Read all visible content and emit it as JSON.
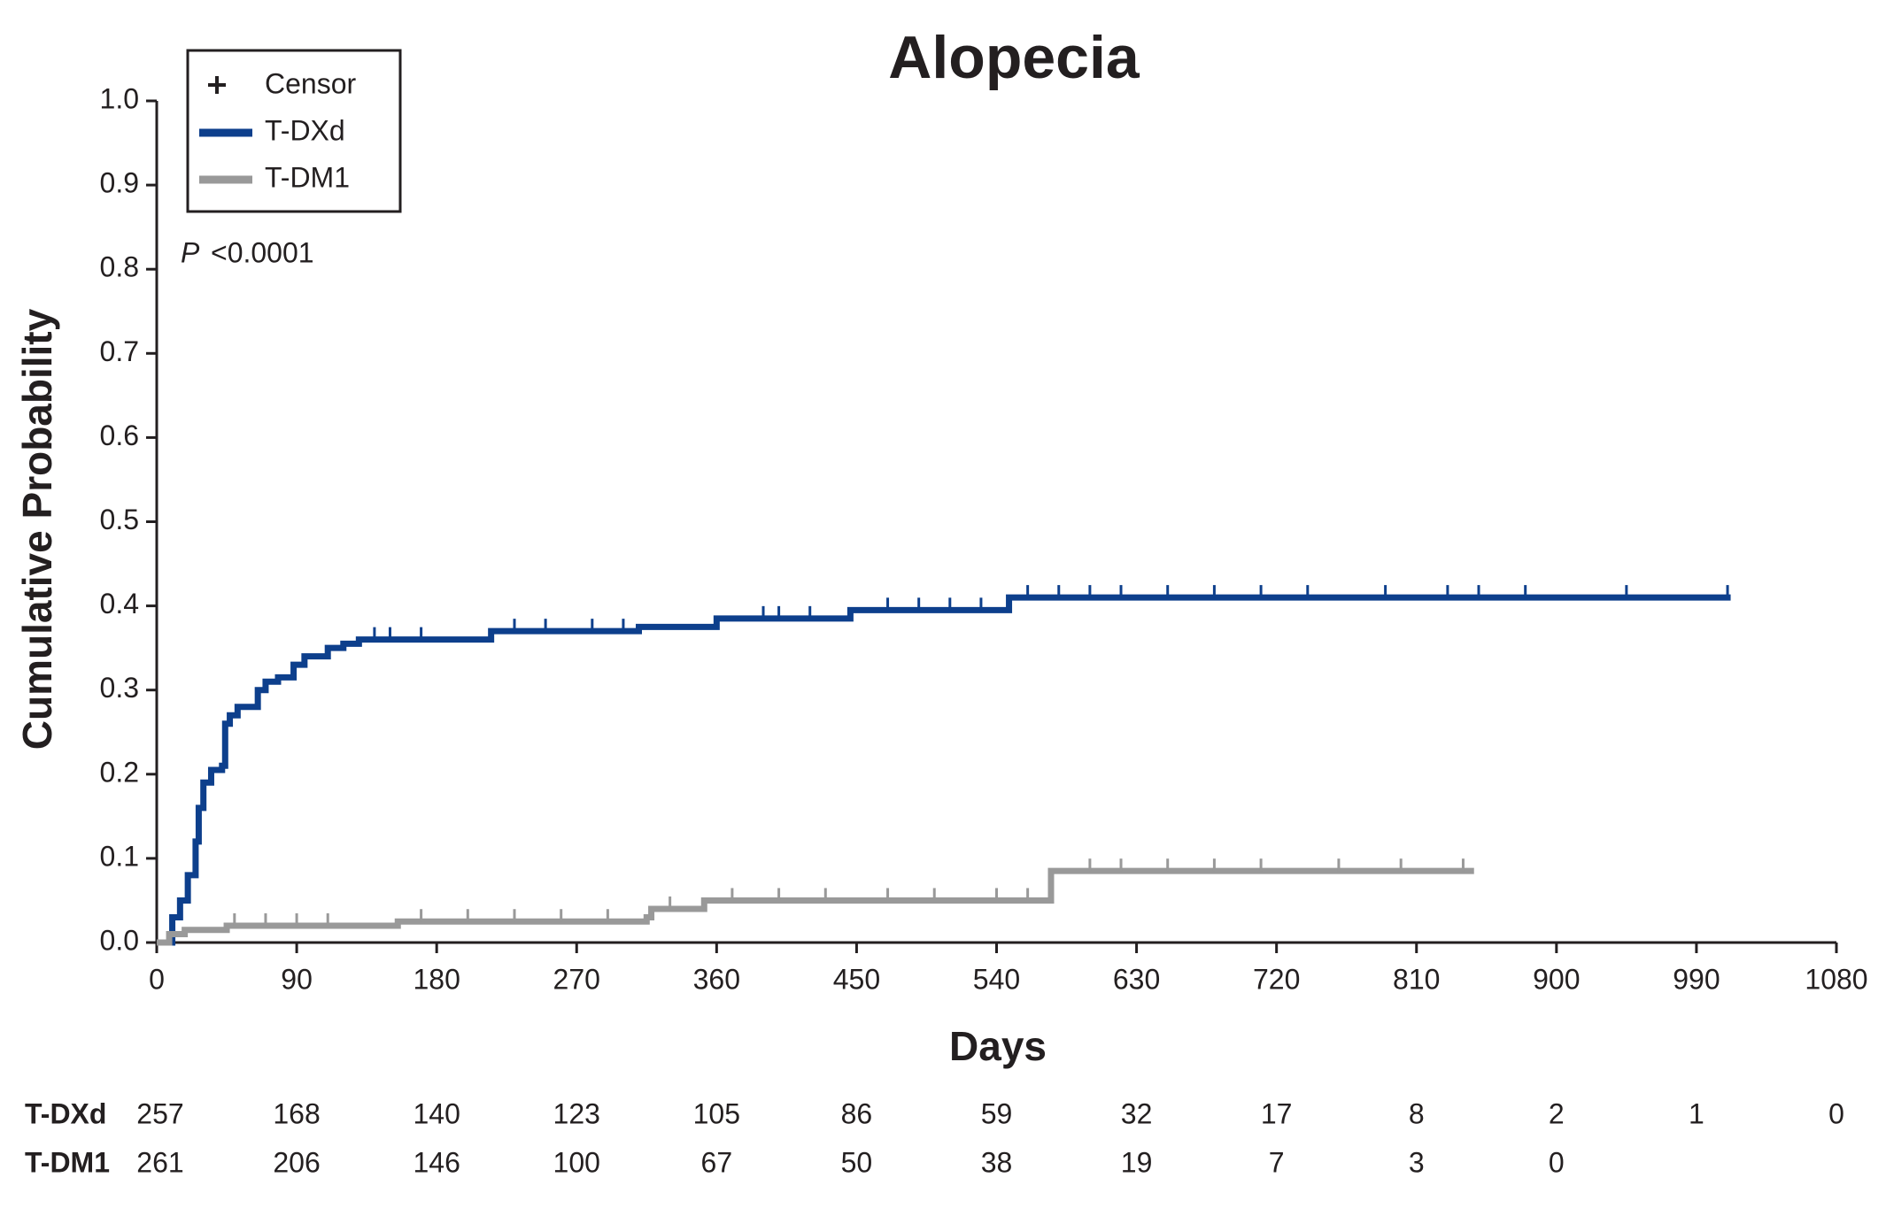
{
  "chart_data": {
    "type": "step",
    "title": "Alopecia",
    "xlabel": "Days",
    "ylabel": "Cumulative Probability",
    "annotation_italic": "P",
    "annotation": "<0.0001",
    "censor_label": "Censor",
    "xlim": [
      0,
      1080
    ],
    "xticks": [
      0,
      90,
      180,
      270,
      360,
      450,
      540,
      630,
      720,
      810,
      900,
      990,
      1080
    ],
    "ylim": [
      0,
      1
    ],
    "yticks": [
      {
        "value": 0,
        "label": "0.0"
      },
      0.1,
      0.2,
      0.3,
      0.4,
      0.5,
      0.6,
      0.7,
      0.8,
      0.9,
      {
        "value": 1,
        "label": "1.0"
      }
    ],
    "series": [
      {
        "name": "T-DXd",
        "color": "#0d3f8c",
        "x": [
          0,
          10,
          15,
          20,
          25,
          27,
          30,
          35,
          42,
          44,
          47,
          52,
          65,
          70,
          78,
          88,
          95,
          110,
          120,
          130,
          215,
          310,
          360,
          446,
          548,
          1012
        ],
        "values": [
          0,
          0.03,
          0.05,
          0.08,
          0.12,
          0.16,
          0.19,
          0.205,
          0.21,
          0.26,
          0.27,
          0.28,
          0.3,
          0.31,
          0.315,
          0.33,
          0.34,
          0.35,
          0.355,
          0.36,
          0.37,
          0.375,
          0.385,
          0.395,
          0.41,
          0.41
        ],
        "censor_x": [
          140,
          150,
          170,
          230,
          250,
          280,
          300,
          390,
          400,
          420,
          470,
          490,
          510,
          530,
          560,
          580,
          600,
          620,
          650,
          680,
          710,
          740,
          790,
          830,
          850,
          880,
          945,
          1010
        ],
        "censor_y": [
          0.36,
          0.36,
          0.36,
          0.37,
          0.37,
          0.37,
          0.37,
          0.385,
          0.385,
          0.385,
          0.395,
          0.395,
          0.395,
          0.395,
          0.41,
          0.41,
          0.41,
          0.41,
          0.41,
          0.41,
          0.41,
          0.41,
          0.41,
          0.41,
          0.41,
          0.41,
          0.41,
          0.41
        ]
      },
      {
        "name": "T-DM1",
        "color": "#999999",
        "x": [
          0,
          8,
          18,
          45,
          155,
          315,
          318,
          352,
          575,
          847
        ],
        "values": [
          0,
          0.01,
          0.015,
          0.02,
          0.025,
          0.03,
          0.04,
          0.05,
          0.085,
          0.085
        ],
        "censor_x": [
          50,
          70,
          90,
          110,
          170,
          200,
          230,
          260,
          290,
          330,
          370,
          400,
          430,
          470,
          500,
          540,
          560,
          600,
          620,
          650,
          680,
          710,
          760,
          800,
          840
        ],
        "censor_y": [
          0.02,
          0.02,
          0.02,
          0.02,
          0.025,
          0.025,
          0.025,
          0.025,
          0.025,
          0.04,
          0.05,
          0.05,
          0.05,
          0.05,
          0.05,
          0.05,
          0.05,
          0.085,
          0.085,
          0.085,
          0.085,
          0.085,
          0.085,
          0.085,
          0.085
        ]
      }
    ],
    "risk_table": [
      {
        "name": "T-DXd",
        "values": [
          257,
          168,
          140,
          123,
          105,
          86,
          59,
          32,
          17,
          8,
          2,
          1,
          0
        ]
      },
      {
        "name": "T-DM1",
        "values": [
          261,
          206,
          146,
          100,
          67,
          50,
          38,
          19,
          7,
          3,
          0
        ]
      }
    ]
  }
}
